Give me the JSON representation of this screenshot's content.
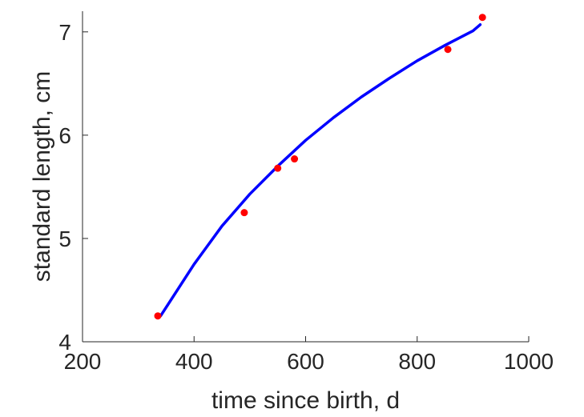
{
  "chart_data": {
    "type": "scatter",
    "title": "",
    "xlabel": "time since birth, d",
    "ylabel": "standard length, cm",
    "xlim": [
      200,
      1000
    ],
    "ylim": [
      4,
      7.2
    ],
    "xticks": [
      200,
      400,
      600,
      800,
      1000
    ],
    "yticks": [
      4,
      5,
      6,
      7
    ],
    "xtick_labels": [
      "200",
      "400",
      "600",
      "800",
      "1000"
    ],
    "ytick_labels": [
      "4",
      "5",
      "6",
      "7"
    ],
    "grid": false,
    "legend": "none",
    "series": [
      {
        "kind": "points",
        "color": "#ff0000",
        "x": [
          335,
          490,
          550,
          580,
          855,
          917
        ],
        "y": [
          4.25,
          5.25,
          5.68,
          5.77,
          6.83,
          7.14
        ]
      },
      {
        "kind": "fit-curve",
        "color": "#0000ff",
        "x": [
          340,
          400,
          450,
          500,
          550,
          600,
          650,
          700,
          750,
          800,
          850,
          900,
          913
        ],
        "y": [
          4.25,
          4.75,
          5.12,
          5.43,
          5.7,
          5.95,
          6.17,
          6.37,
          6.55,
          6.72,
          6.87,
          7.01,
          7.07
        ]
      }
    ]
  }
}
